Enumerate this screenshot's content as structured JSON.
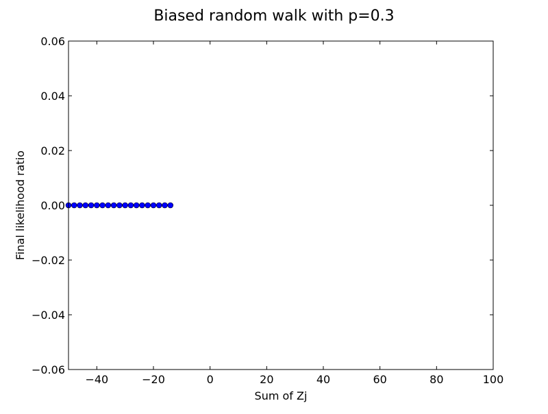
{
  "chart_data": {
    "type": "scatter",
    "title": "Biased random walk with p=0.3",
    "xlabel": "Sum of Zj",
    "ylabel": "Final likelihood ratio",
    "xlim": [
      -50,
      100
    ],
    "ylim": [
      -0.06,
      0.06
    ],
    "xticks": [
      -40,
      -20,
      0,
      20,
      40,
      60,
      80,
      100
    ],
    "xtick_labels": [
      "−40",
      "−20",
      "0",
      "20",
      "40",
      "60",
      "80",
      "100"
    ],
    "yticks": [
      -0.06,
      -0.04,
      -0.02,
      0.0,
      0.02,
      0.04,
      0.06
    ],
    "ytick_labels": [
      "−0.06",
      "−0.04",
      "−0.02",
      "0.00",
      "0.02",
      "0.04",
      "0.06"
    ],
    "grid": false,
    "marker_color": "#0000ff",
    "series": [
      {
        "x": [
          -50,
          -48,
          -46,
          -44,
          -42,
          -40,
          -38,
          -36,
          -34,
          -32,
          -30,
          -28,
          -26,
          -24,
          -22,
          -20,
          -18,
          -16,
          -14
        ],
        "y": [
          0,
          0,
          0,
          0,
          0,
          0,
          0,
          0,
          0,
          0,
          0,
          0,
          0,
          0,
          0,
          0,
          0,
          0,
          0
        ]
      }
    ]
  }
}
